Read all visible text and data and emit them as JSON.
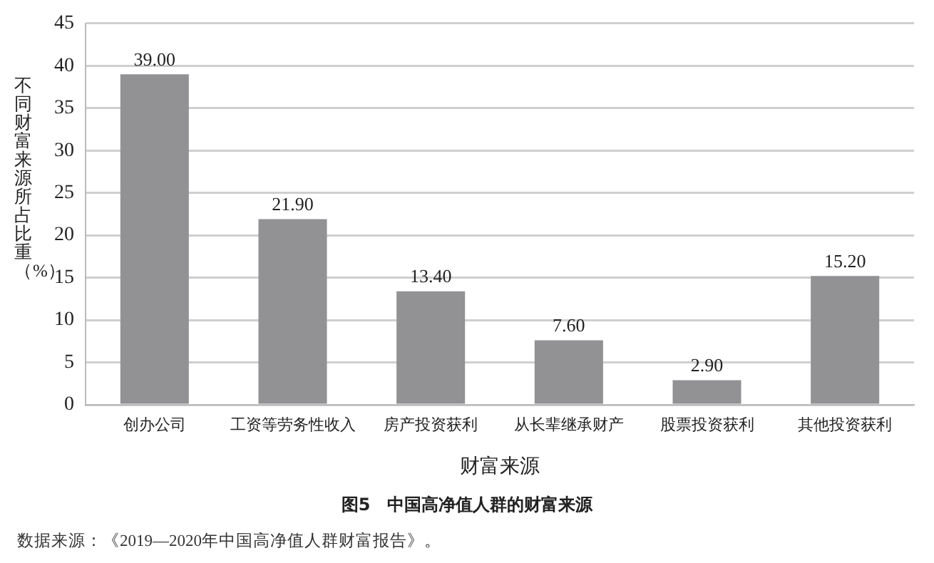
{
  "chart_data": {
    "type": "bar",
    "title": "图5　中国高净值人群的财富来源",
    "xlabel": "财富来源",
    "ylabel": "不同财富来源所占比重（%）",
    "categories": [
      "创办公司",
      "工资等劳务性收入",
      "房产投资获利",
      "从长辈继承财产",
      "股票投资获利",
      "其他投资获利"
    ],
    "values": [
      39,
      21.9,
      13.4,
      7.6,
      2.9,
      15.2
    ],
    "value_labels": [
      "39.00",
      "21.90",
      "13.40",
      "7.60",
      "2.90",
      "15.20"
    ],
    "color": "#929295",
    "ylim": [
      0,
      45
    ],
    "yticks": [
      0,
      5,
      10,
      15,
      20,
      25,
      30,
      35,
      40,
      45
    ],
    "grid": "y",
    "annotations": [
      "数据来源：《2019—2020年中国高净值人群财富报告》。"
    ]
  }
}
